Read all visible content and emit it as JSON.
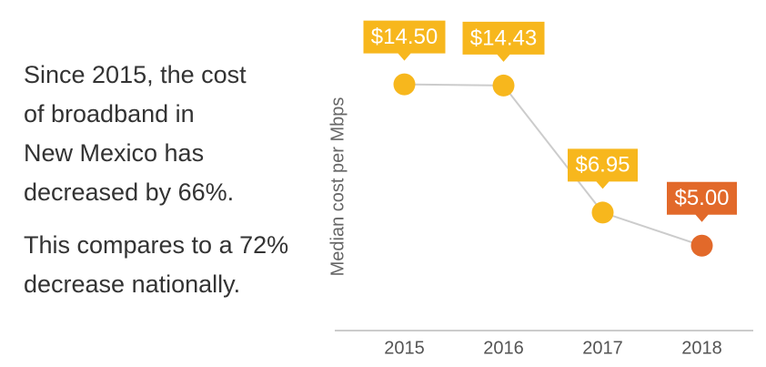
{
  "intro": {
    "paragraphs": [
      [
        "Since 2015, the cost",
        "of broadband in",
        "New Mexico has",
        "decreased by 66%."
      ],
      [
        "This compares to a 72%",
        "decrease nationally."
      ]
    ]
  },
  "chart_data": {
    "type": "line",
    "y_label": "Median cost per Mbps",
    "categories": [
      "2015",
      "2016",
      "2017",
      "2018"
    ],
    "values": [
      14.5,
      14.43,
      6.95,
      5.0
    ],
    "value_labels": [
      "$14.50",
      "$14.43",
      "$6.95",
      "$5.00"
    ],
    "colors": [
      "#f7b71d",
      "#f7b71d",
      "#f7b71d",
      "#e2692a"
    ],
    "line_color": "#cccccc",
    "ylim": [
      0,
      17
    ]
  }
}
